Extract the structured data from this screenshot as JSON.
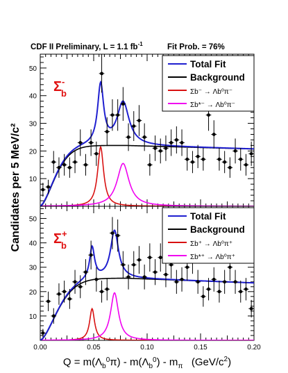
{
  "header": {
    "experiment": "CDF II Preliminary, L = 1.1 fb",
    "lumi_exp": "-1",
    "fit_prob": "Fit Prob. = 76%"
  },
  "colors": {
    "total_fit": "#1f1fd0",
    "background": "#000000",
    "sigma_b": "#d81010",
    "sigma_b_star": "#f000f0",
    "panel_label": "#e01010"
  },
  "chart_data": [
    {
      "type": "scatter",
      "panel": "top",
      "label": {
        "main": "Σ",
        "sub": "b",
        "sup": "-"
      },
      "ylabel": "Candidates per 5 MeV/c²",
      "ylim": [
        0,
        55
      ],
      "yticks": [
        10,
        20,
        30,
        40,
        50
      ],
      "xlim": [
        0.0,
        0.2
      ],
      "legend": {
        "placement": "top-right",
        "entries": [
          {
            "text": "Total Fit",
            "color": "#1f1fd0"
          },
          {
            "text": "Background",
            "color": "#000000"
          },
          {
            "text": "Σb⁻ → Λb⁰π⁻",
            "color": "#d81010"
          },
          {
            "text": "Σb*⁻ → Λb⁰π⁻",
            "color": "#f000f0"
          }
        ]
      },
      "series": [
        {
          "name": "Data",
          "x": [
            0.0025,
            0.0075,
            0.0125,
            0.0175,
            0.0225,
            0.0275,
            0.0325,
            0.0375,
            0.0425,
            0.0475,
            0.0525,
            0.0575,
            0.0625,
            0.0675,
            0.0725,
            0.0775,
            0.0825,
            0.0875,
            0.0925,
            0.0975,
            0.1025,
            0.1075,
            0.1125,
            0.1175,
            0.1225,
            0.1275,
            0.1325,
            0.1375,
            0.1425,
            0.1475,
            0.1525,
            0.1575,
            0.1625,
            0.1675,
            0.1725,
            0.1775,
            0.1825,
            0.1875,
            0.1925,
            0.1975
          ],
          "y": [
            6,
            7,
            16,
            14,
            15,
            14,
            16,
            23,
            15,
            23,
            19,
            48,
            27,
            33,
            33,
            37,
            25,
            29,
            31,
            25,
            15,
            21,
            20,
            21,
            23,
            24,
            23,
            17,
            16,
            18,
            17,
            33,
            26,
            17,
            16,
            14,
            20,
            17,
            15,
            19
          ],
          "yerr": [
            2.5,
            2.6,
            4.0,
            3.7,
            3.9,
            3.7,
            4.0,
            4.8,
            3.9,
            4.8,
            4.4,
            6.9,
            5.2,
            5.7,
            5.7,
            6.1,
            5.0,
            5.4,
            5.6,
            5.0,
            3.9,
            4.6,
            4.5,
            4.6,
            4.8,
            4.9,
            4.8,
            4.1,
            4.0,
            4.2,
            4.1,
            5.7,
            5.1,
            4.1,
            4.0,
            3.7,
            4.5,
            4.1,
            3.9,
            4.4
          ]
        }
      ],
      "model": {
        "background": {
          "amplitude": 22.0,
          "x0": 0.0,
          "tau": 0.012,
          "power": 1.6,
          "slope": -12
        },
        "peaks": [
          {
            "name": "Σb⁻ → Λb⁰π⁻",
            "mean": 0.0565,
            "width": 0.0034,
            "height": 21.5,
            "color": "#d81010"
          },
          {
            "name": "Σb*⁻ → Λb⁰π⁻",
            "mean": 0.0775,
            "width": 0.0068,
            "height": 15.5,
            "color": "#f000f0"
          }
        ]
      }
    },
    {
      "type": "scatter",
      "panel": "bottom",
      "label": {
        "main": "Σ",
        "sub": "b",
        "sup": "+"
      },
      "xlabel": "Q = m(Λb⁰π) - m(Λb⁰) - mπ  (GeV/c²)",
      "ylim": [
        0,
        55
      ],
      "yticks": [
        10,
        20,
        30,
        40,
        50
      ],
      "xlim": [
        0.0,
        0.2
      ],
      "xticks": [
        "0.00",
        "0.05",
        "0.10",
        "0.15",
        "0.20"
      ],
      "legend": {
        "placement": "top-right",
        "entries": [
          {
            "text": "Total Fit",
            "color": "#1f1fd0"
          },
          {
            "text": "Background",
            "color": "#000000"
          },
          {
            "text": "Σb⁺ → Λb⁰π⁺",
            "color": "#d81010"
          },
          {
            "text": "Σb*⁺ → Λb⁰π⁺",
            "color": "#f000f0"
          }
        ]
      },
      "series": [
        {
          "name": "Data",
          "x": [
            0.0025,
            0.0075,
            0.0125,
            0.0175,
            0.0225,
            0.0275,
            0.0325,
            0.0375,
            0.0425,
            0.0475,
            0.0525,
            0.0575,
            0.0625,
            0.0675,
            0.0725,
            0.0775,
            0.0825,
            0.0875,
            0.0925,
            0.0975,
            0.1025,
            0.1075,
            0.1125,
            0.1175,
            0.1225,
            0.1275,
            0.1325,
            0.1375,
            0.1425,
            0.1475,
            0.1525,
            0.1575,
            0.1625,
            0.1675,
            0.1725,
            0.1775,
            0.1825,
            0.1875,
            0.1925,
            0.1975
          ],
          "y": [
            3,
            16,
            10,
            19,
            20,
            17,
            24,
            22,
            28,
            35,
            25,
            20,
            21,
            44,
            43,
            31,
            26,
            31,
            33,
            26,
            34,
            28,
            34,
            27,
            31,
            24,
            25,
            30,
            33,
            24,
            18,
            21,
            25,
            20,
            24,
            30,
            24,
            20,
            21,
            13
          ],
          "yerr": [
            1.7,
            4.0,
            3.2,
            4.4,
            4.5,
            4.1,
            4.9,
            4.7,
            5.3,
            5.9,
            5.0,
            4.5,
            4.6,
            6.6,
            6.6,
            5.6,
            5.1,
            5.6,
            5.7,
            5.1,
            5.8,
            5.3,
            5.8,
            5.2,
            5.6,
            4.9,
            5.0,
            5.5,
            5.7,
            4.9,
            4.2,
            4.6,
            5.0,
            4.5,
            4.9,
            5.5,
            4.9,
            4.5,
            4.6,
            3.6
          ]
        }
      ],
      "model": {
        "background": {
          "amplitude": 25.5,
          "x0": 0.0,
          "tau": 0.014,
          "power": 1.6,
          "slope": -18
        },
        "peaks": [
          {
            "name": "Σb⁺ → Λb⁰π⁺",
            "mean": 0.0485,
            "width": 0.0028,
            "height": 13.0,
            "color": "#d81010"
          },
          {
            "name": "Σb*⁺ → Λb⁰π⁺",
            "mean": 0.0695,
            "width": 0.0045,
            "height": 19.5,
            "color": "#f000f0"
          }
        ]
      }
    }
  ]
}
